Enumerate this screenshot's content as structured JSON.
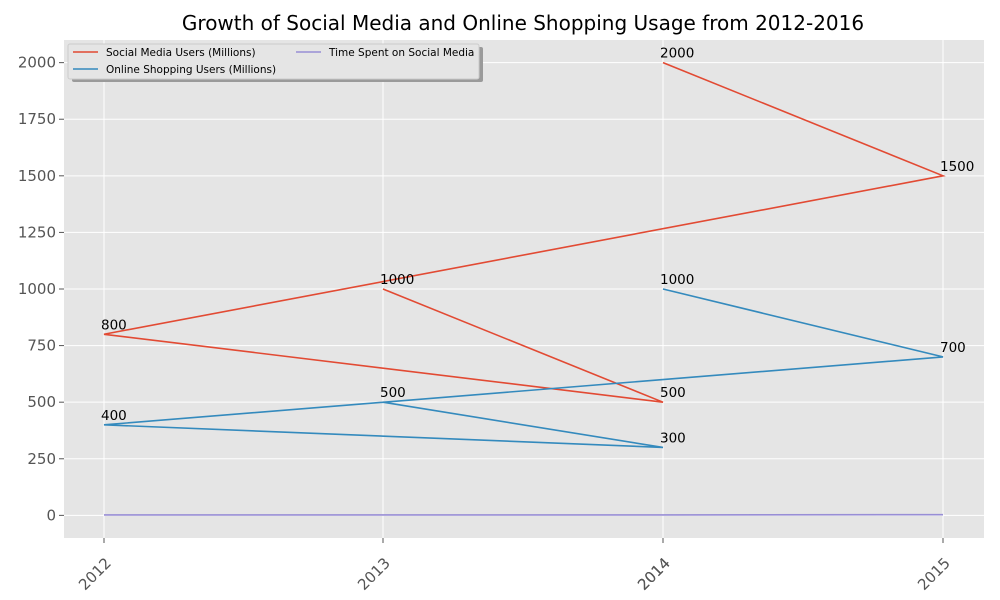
{
  "chart_data": {
    "type": "line",
    "title": "Growth of Social Media and Online Shopping Usage from 2012-2016",
    "xlabel": "",
    "ylabel": "",
    "x_ticks": [
      "2012",
      "2013",
      "2014",
      "2014",
      "2015"
    ],
    "y_ticks": [
      "0",
      "250",
      "500",
      "750",
      "1000",
      "1250",
      "1500",
      "1750",
      "2000"
    ],
    "ylim": [
      -100,
      2100
    ],
    "grid": true,
    "legend_position": "top-left",
    "series": [
      {
        "name": "Social Media Users (Millions)",
        "color": "#E24A33",
        "points": [
          {
            "x": "2014",
            "y": 2000,
            "label": "2000"
          },
          {
            "x": "2015",
            "y": 1500,
            "label": "1500"
          },
          {
            "x": "2012",
            "y": 800,
            "label": "800"
          },
          {
            "x": "2014",
            "y": 500,
            "label": "500"
          },
          {
            "x": "2013",
            "y": 1000,
            "label": "1000"
          }
        ]
      },
      {
        "name": "Online Shopping Users (Millions)",
        "color": "#348ABD",
        "points": [
          {
            "x": "2014",
            "y": 1000,
            "label": "1000"
          },
          {
            "x": "2015",
            "y": 700,
            "label": "700"
          },
          {
            "x": "2012",
            "y": 400,
            "label": "400"
          },
          {
            "x": "2014",
            "y": 300,
            "label": "300"
          },
          {
            "x": "2013",
            "y": 500,
            "label": "500"
          }
        ]
      },
      {
        "name": "Time Spent on Social Media",
        "color": "#988ED5",
        "points": [
          {
            "x": "2012",
            "y": 2
          },
          {
            "x": "2013",
            "y": 2
          },
          {
            "x": "2014",
            "y": 2
          },
          {
            "x": "2015",
            "y": 3
          }
        ]
      }
    ]
  }
}
